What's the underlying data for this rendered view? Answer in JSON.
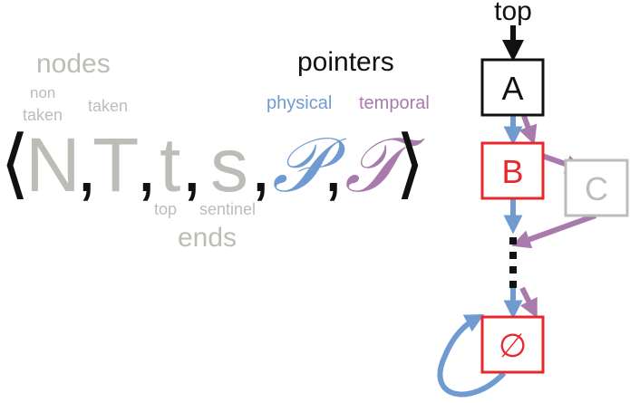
{
  "tuple": {
    "open": "⟨",
    "N": "N",
    "T": "T",
    "t": "t",
    "s": "s",
    "P": "𝒫",
    "Tp": "𝒯",
    "close": "⟩",
    "comma": ","
  },
  "labels": {
    "nodes": "nodes",
    "non_taken_line1": "non",
    "non_taken_line2": "taken",
    "taken": "taken",
    "pointers": "pointers",
    "physical": "physical",
    "temporal": "temporal",
    "top_small": "top",
    "sentinel": "sentinel",
    "ends": "ends"
  },
  "graph": {
    "top": "top",
    "nodes": [
      {
        "id": "A",
        "label": "A"
      },
      {
        "id": "B",
        "label": "B"
      },
      {
        "id": "C",
        "label": "C"
      },
      {
        "id": "empty",
        "label": "∅"
      }
    ]
  },
  "colors": {
    "gray": "#bdbdb8",
    "physical": "#6f9bd1",
    "temporal": "#a97aac",
    "red": "#e8262b",
    "black": "#111111"
  }
}
